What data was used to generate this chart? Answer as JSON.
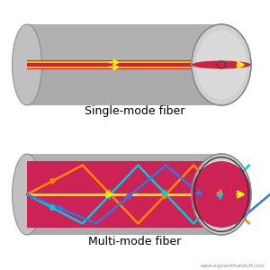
{
  "background_color": "#ffffff",
  "title1": "Single-mode fiber",
  "title2": "Multi-mode fiber",
  "watermark": "www.explainthatstuff.com",
  "colors": {
    "yellow": "#ffee00",
    "orange": "#ff8800",
    "cyan": "#00ccdd",
    "blue": "#3377dd",
    "dark_red": "#cc2244",
    "magenta": "#cc2255",
    "gray_body": "#aaaaaa",
    "gray_light": "#cccccc",
    "gray_shadow": "#999999"
  }
}
